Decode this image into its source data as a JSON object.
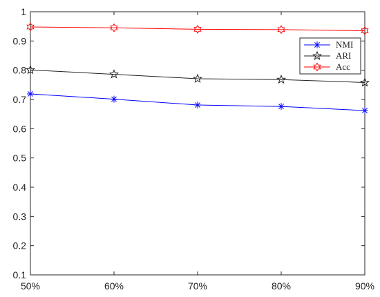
{
  "chart_data": {
    "type": "line",
    "categories": [
      "50%",
      "60%",
      "70%",
      "80%",
      "90%"
    ],
    "y_ticks": [
      "0.1",
      "0.2",
      "0.3",
      "0.4",
      "0.5",
      "0.6",
      "0.7",
      "0.8",
      "0.9",
      "1"
    ],
    "ylim": [
      0.1,
      1
    ],
    "grid": false,
    "legend_position": "top-right",
    "series": [
      {
        "name": "NMI",
        "color": "#0000ff",
        "marker": "asterisk",
        "values": [
          0.719,
          0.701,
          0.681,
          0.676,
          0.662
        ]
      },
      {
        "name": "ARI",
        "color": "#222222",
        "marker": "star",
        "values": [
          0.801,
          0.786,
          0.771,
          0.768,
          0.758
        ]
      },
      {
        "name": "Acc",
        "color": "#ff0000",
        "marker": "hexagram",
        "values": [
          0.948,
          0.945,
          0.94,
          0.939,
          0.935
        ]
      }
    ]
  }
}
